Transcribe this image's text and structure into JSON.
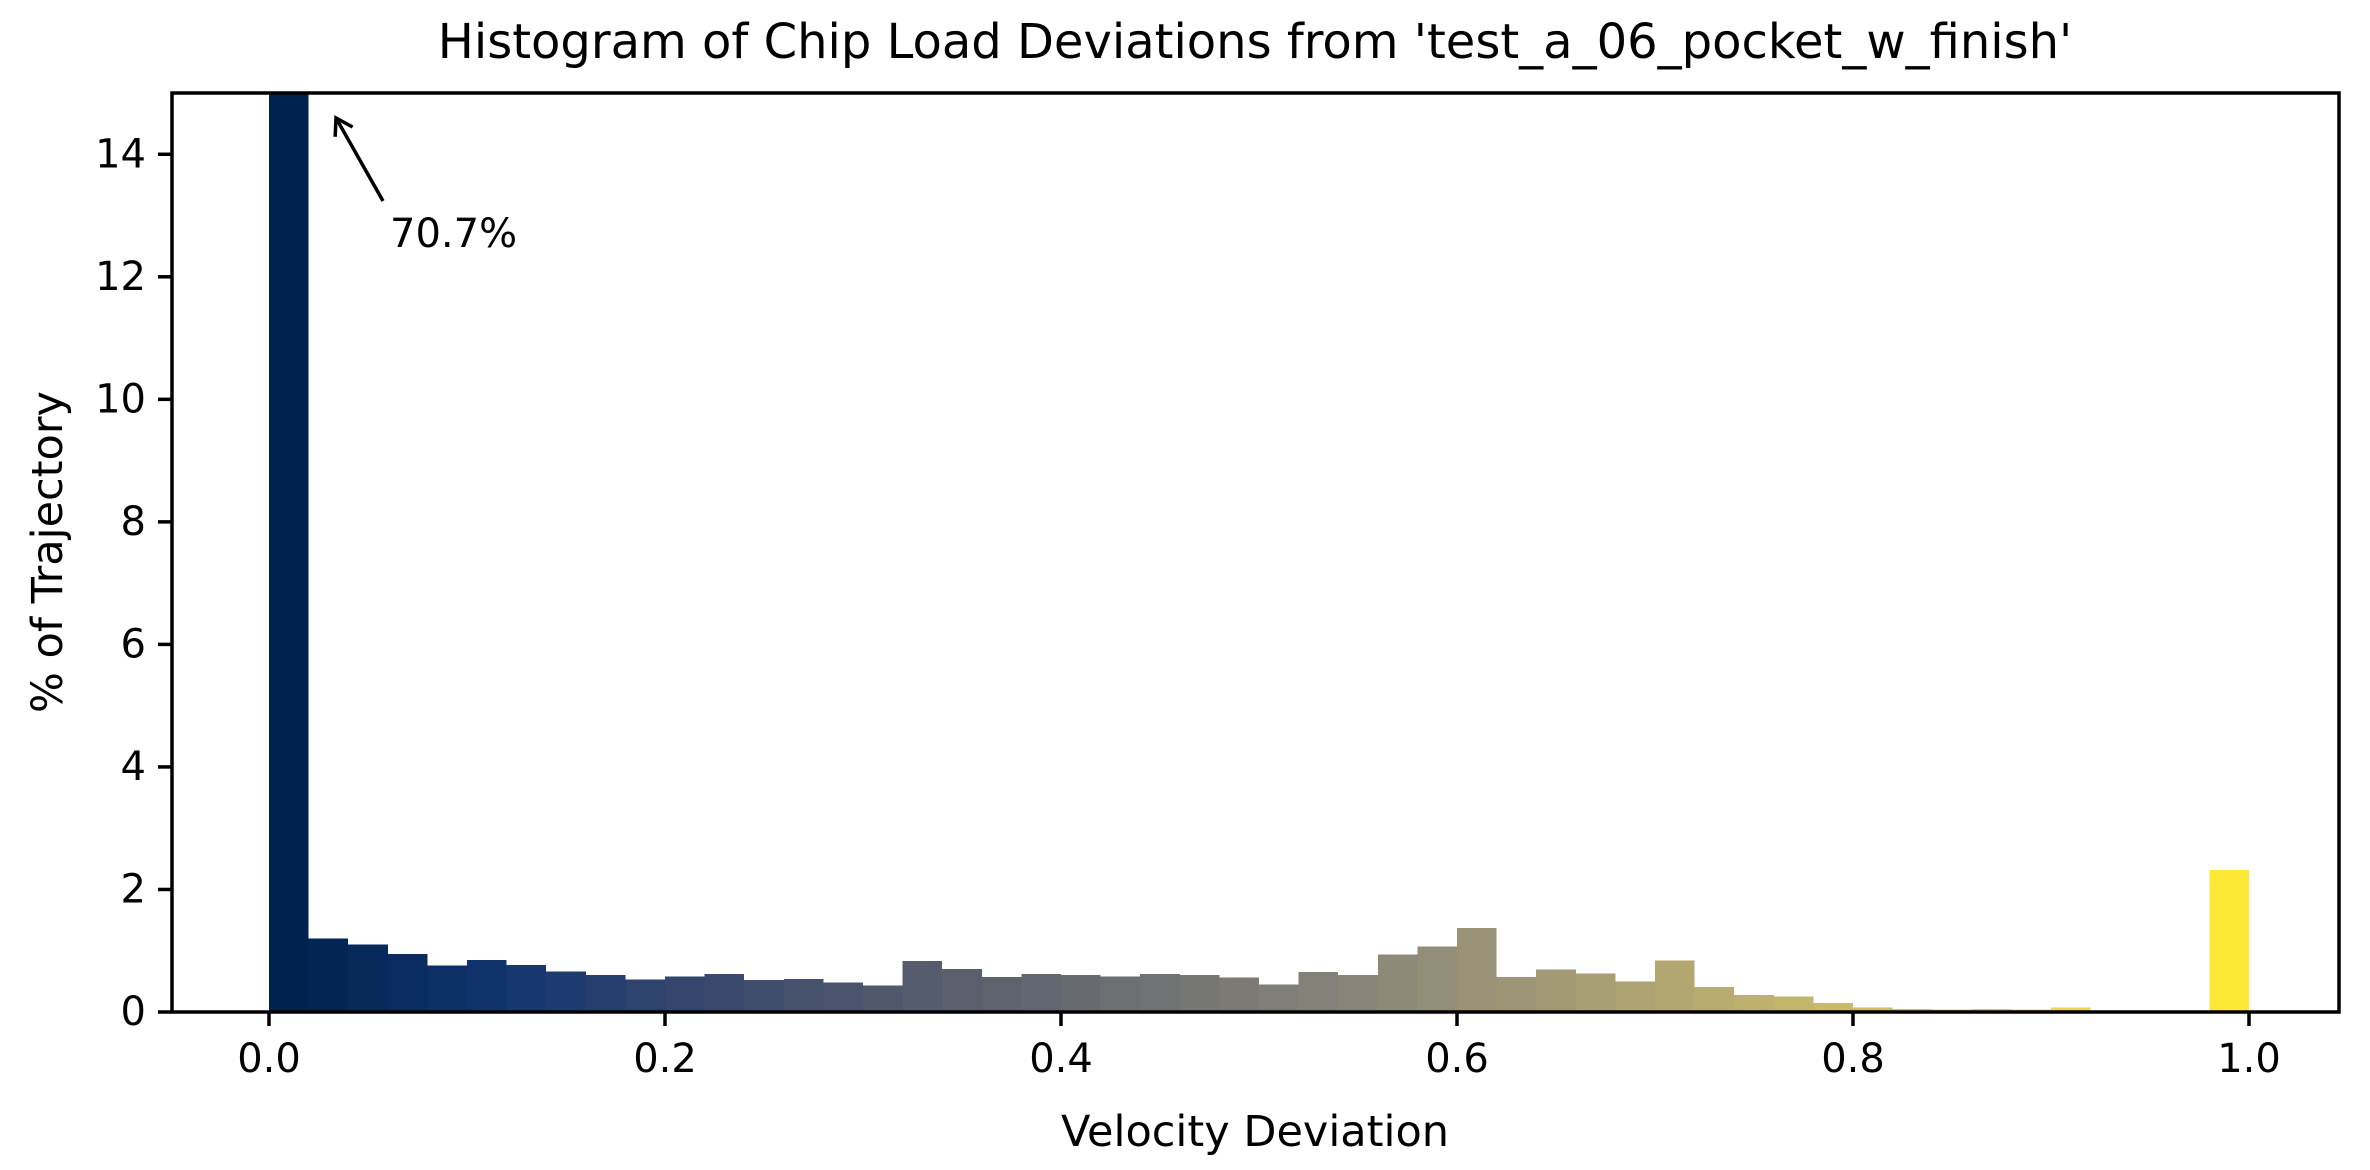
{
  "chart_data": {
    "type": "bar",
    "subtype": "histogram",
    "title": "Histogram of Chip Load Deviations from 'test_a_06_pocket_w_finish'",
    "xlabel": "Velocity Deviation",
    "ylabel": "% of Trajectory",
    "bin_start": 0.0,
    "bin_width": 0.02,
    "n_bins": 50,
    "values_percent": [
      70.7,
      1.2,
      1.1,
      0.95,
      0.76,
      0.85,
      0.77,
      0.66,
      0.6,
      0.53,
      0.58,
      0.62,
      0.52,
      0.54,
      0.48,
      0.43,
      0.83,
      0.7,
      0.57,
      0.62,
      0.6,
      0.58,
      0.62,
      0.6,
      0.56,
      0.45,
      0.65,
      0.6,
      0.94,
      1.07,
      1.37,
      0.57,
      0.69,
      0.63,
      0.5,
      0.84,
      0.41,
      0.28,
      0.25,
      0.15,
      0.07,
      0.05,
      0.04,
      0.05,
      0.04,
      0.07,
      0.02,
      0.0,
      0.0,
      2.32
    ],
    "xlim": [
      -0.05,
      1.045
    ],
    "ylim": [
      0,
      15
    ],
    "xticks": {
      "values": [
        0.0,
        0.2,
        0.4,
        0.6,
        0.8,
        1.0
      ],
      "labels": [
        "0.0",
        "0.2",
        "0.4",
        "0.6",
        "0.8",
        "1.0"
      ]
    },
    "yticks": {
      "values": [
        0,
        2,
        4,
        6,
        8,
        10,
        12,
        14
      ],
      "labels": [
        "0",
        "2",
        "4",
        "6",
        "8",
        "10",
        "12",
        "14"
      ]
    },
    "grid": false,
    "legend": null,
    "annotation": {
      "label": "70.7%",
      "target_bin": "0.00-0.02",
      "target_value_percent": 70.7
    },
    "colormap": "cividis",
    "colormap_stops": [
      "#00224e",
      "#123570",
      "#3b496c",
      "#575d6d",
      "#707173",
      "#8a8779",
      "#a69d75",
      "#c4b56c",
      "#e4cf5b",
      "#fde737"
    ],
    "first_bar_color": "#00224e",
    "last_bar_color": "#fde737",
    "axis_color": "#000000",
    "background_color": "#ffffff"
  }
}
